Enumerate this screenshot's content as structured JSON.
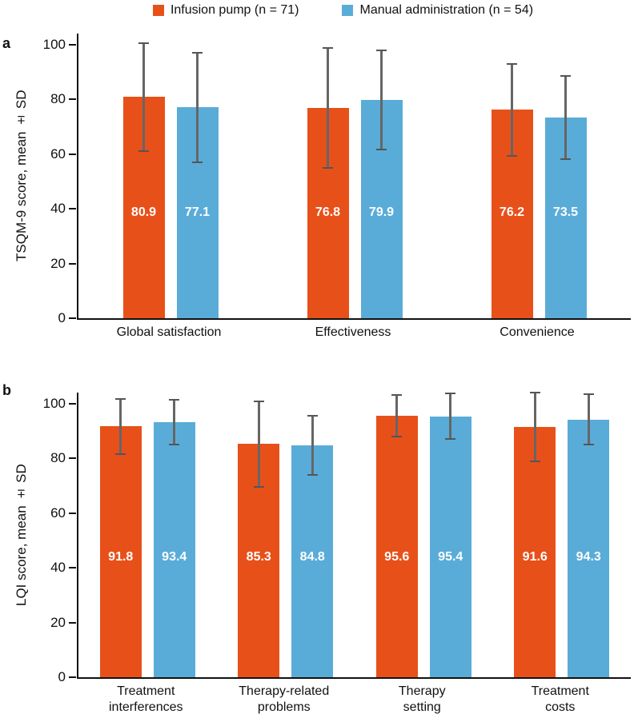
{
  "legend": {
    "items": [
      {
        "label": "Infusion pump (n = 71)",
        "color": "#E8501A",
        "icon": "orange-square"
      },
      {
        "label": "Manual administration (n = 54)",
        "color": "#5AACD8",
        "icon": "blue-square"
      }
    ]
  },
  "chart_data": [
    {
      "type": "bar",
      "panel": "a",
      "ylabel": "TSQM-9 score, mean ± SD",
      "ylim": [
        0,
        100
      ],
      "yticks": [
        0,
        20,
        40,
        60,
        80,
        100
      ],
      "grid": false,
      "legend_position": "top",
      "error_bars": "± SD",
      "categories": [
        "Global satisfaction",
        "Effectiveness",
        "Convenience"
      ],
      "series": [
        {
          "name": "Infusion pump (n = 71)",
          "color": "#E8501A",
          "values": [
            80.9,
            76.8,
            76.2
          ],
          "sd": [
            19.7,
            21.9,
            16.7
          ]
        },
        {
          "name": "Manual administration (n = 54)",
          "color": "#5AACD8",
          "values": [
            77.1,
            79.9,
            73.5
          ],
          "sd": [
            20.0,
            18.1,
            15.2
          ]
        }
      ]
    },
    {
      "type": "bar",
      "panel": "b",
      "ylabel": "LQI score, mean ± SD",
      "ylim": [
        0,
        100
      ],
      "yticks": [
        0,
        20,
        40,
        60,
        80,
        100
      ],
      "grid": false,
      "legend_position": "top",
      "error_bars": "± SD",
      "categories": [
        "Treatment\ninterferences",
        "Therapy-related\nproblems",
        "Therapy\nsetting",
        "Treatment\ncosts"
      ],
      "series": [
        {
          "name": "Infusion pump (n = 71)",
          "color": "#E8501A",
          "values": [
            91.8,
            85.3,
            95.6,
            91.6
          ],
          "sd": [
            10.1,
            15.6,
            7.7,
            12.6
          ]
        },
        {
          "name": "Manual administration (n = 54)",
          "color": "#5AACD8",
          "values": [
            93.4,
            84.8,
            95.4,
            94.3
          ],
          "sd": [
            8.2,
            10.9,
            8.3,
            9.2
          ]
        }
      ]
    }
  ]
}
